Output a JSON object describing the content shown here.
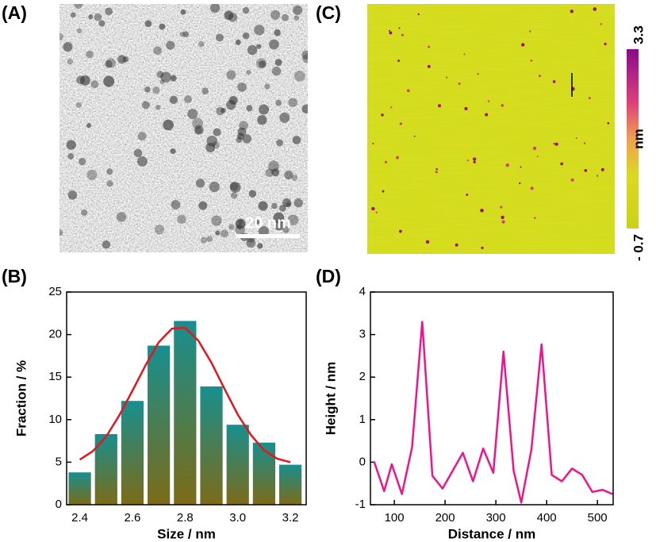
{
  "panels": {
    "a": {
      "label": "(A)",
      "scale_bar": "20 nm"
    },
    "c": {
      "label": "(C)",
      "colorbar": {
        "max_label": "3.3",
        "min_label": "- 0.7",
        "unit": "nm"
      }
    }
  },
  "chart_data": [
    {
      "type": "bar",
      "label": "(B)",
      "xlabel": "Size / nm",
      "ylabel": "Fraction / %",
      "x": [
        2.4,
        2.5,
        2.6,
        2.7,
        2.8,
        2.9,
        3.0,
        3.1,
        3.2
      ],
      "values": [
        3.8,
        8.3,
        12.2,
        18.7,
        21.6,
        13.9,
        9.4,
        7.3,
        4.7
      ],
      "color": "#178f8f",
      "color_bottom": "#7d6b17",
      "fit": {
        "x": [
          2.4,
          2.45,
          2.5,
          2.55,
          2.6,
          2.65,
          2.7,
          2.75,
          2.8,
          2.85,
          2.9,
          2.95,
          3.0,
          3.05,
          3.1,
          3.15,
          3.2
        ],
        "values": [
          5.3,
          6.3,
          8.0,
          10.5,
          13.4,
          16.4,
          19.1,
          20.7,
          20.8,
          19.3,
          16.7,
          13.6,
          10.6,
          8.2,
          6.4,
          5.4,
          5.0
        ],
        "color": "#e8141c"
      },
      "xlim": [
        2.35,
        3.26
      ],
      "ylim": [
        0,
        25
      ],
      "xticks": [
        2.4,
        2.6,
        2.8,
        {
          "value": 3,
          "label": "3.0"
        },
        3.2
      ],
      "yticks": [
        0,
        5,
        10,
        15,
        20,
        25
      ]
    },
    {
      "type": "line",
      "label": "(D)",
      "xlabel": "Distance / nm",
      "ylabel": "Height / nm",
      "x": [
        60,
        80,
        95,
        115,
        135,
        155,
        175,
        195,
        235,
        255,
        275,
        295,
        315,
        335,
        350,
        370,
        390,
        410,
        430,
        450,
        470,
        490,
        510,
        530
      ],
      "values": [
        0.02,
        -0.68,
        -0.05,
        -0.75,
        0.35,
        3.3,
        -0.32,
        -0.62,
        0.22,
        -0.45,
        0.32,
        -0.25,
        2.6,
        -0.2,
        -0.95,
        0.3,
        2.77,
        -0.3,
        -0.45,
        -0.15,
        -0.3,
        -0.7,
        -0.65,
        -0.75
      ],
      "color": "#f0148c",
      "xlim": [
        53,
        531
      ],
      "ylim": [
        -1,
        4
      ],
      "xticks": [
        100,
        200,
        300,
        400,
        500
      ],
      "yticks": [
        -1,
        0,
        1,
        2,
        3,
        4
      ]
    }
  ]
}
